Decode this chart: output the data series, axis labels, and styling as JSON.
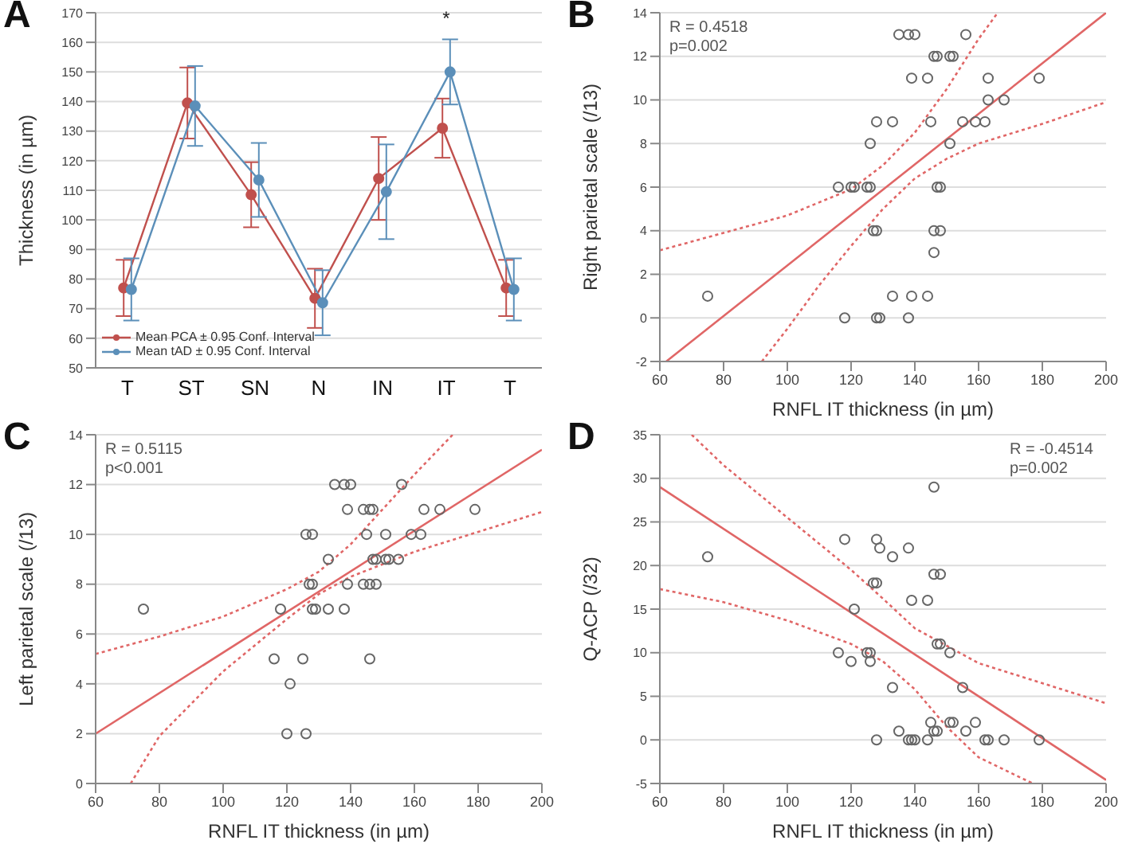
{
  "chart_data": [
    {
      "type": "line",
      "title": "A",
      "ylabel": "Thickness (in µm)",
      "categories": [
        "T",
        "ST",
        "SN",
        "N",
        "IN",
        "IT",
        "T"
      ],
      "ylim": [
        50,
        170
      ],
      "yticks": [
        50,
        60,
        70,
        80,
        90,
        100,
        110,
        120,
        130,
        140,
        150,
        160,
        170
      ],
      "grid": "y",
      "marker": "circle",
      "legend": "bottom left",
      "annotations": [
        {
          "text": "*",
          "x": "IT",
          "y": 150
        }
      ],
      "series": [
        {
          "name": "Mean PCA ± 0.95 Conf. Interval",
          "color": "#c0504d",
          "values": [
            77,
            139.5,
            108.5,
            73.5,
            114,
            131,
            77
          ],
          "errors": [
            9.5,
            12,
            11,
            10,
            14,
            10,
            9.5
          ]
        },
        {
          "name": "Mean tAD ± 0.95 Conf. Interval",
          "color": "#5b8fb9",
          "values": [
            76.5,
            138.5,
            113.5,
            72,
            109.5,
            150,
            76.5
          ],
          "errors": [
            10.5,
            13.5,
            12.5,
            11,
            16,
            11,
            10.5
          ]
        }
      ]
    },
    {
      "type": "scatter",
      "title": "B",
      "xlabel": "RNFL IT thickness (in µm)",
      "ylabel": "Right parietal scale (/13)",
      "xlim": [
        60,
        200
      ],
      "xticks": [
        60,
        80,
        100,
        120,
        140,
        160,
        180,
        200
      ],
      "ylim": [
        -2,
        14
      ],
      "yticks": [
        -2,
        0,
        2,
        4,
        6,
        8,
        10,
        12,
        14
      ],
      "grid": "y",
      "marker": "circle",
      "annotations": [
        "R = 0.4518",
        "p=0.002"
      ],
      "series": [
        {
          "color": "#666666",
          "x": [
            135,
            138,
            140,
            156,
            146,
            147,
            151,
            152,
            139,
            144,
            163,
            179,
            163,
            168,
            128,
            133,
            145,
            155,
            159,
            162,
            126,
            151,
            116,
            120,
            121,
            125,
            126,
            147,
            148,
            127,
            128,
            146,
            148,
            146,
            75,
            133,
            139,
            144,
            118,
            128,
            129,
            138
          ],
          "values": [
            13,
            13,
            13,
            13,
            12,
            12,
            12,
            12,
            11,
            11,
            11,
            11,
            10,
            10,
            9,
            9,
            9,
            9,
            9,
            9,
            8,
            8,
            6,
            6,
            6,
            6,
            6,
            6,
            6,
            4,
            4,
            4,
            4,
            3,
            1,
            1,
            1,
            1,
            0,
            0,
            0,
            0
          ]
        },
        {
          "type": "line",
          "marker": "none",
          "line_style": "solid",
          "color": "#e06666",
          "x": [
            62,
            200
          ],
          "values": [
            -2,
            14
          ]
        },
        {
          "type": "line",
          "marker": "none",
          "line_style": "dotted",
          "color": "#e06666",
          "x": [
            60,
            80,
            100,
            120,
            130,
            140,
            150,
            160,
            166
          ],
          "values": [
            3.1,
            3.9,
            4.7,
            5.9,
            7,
            8.5,
            10.5,
            12.8,
            14
          ]
        },
        {
          "type": "line",
          "marker": "none",
          "line_style": "dotted",
          "color": "#e06666",
          "x": [
            92,
            100,
            110,
            120,
            130,
            140,
            150,
            160,
            180,
            200
          ],
          "values": [
            -2,
            -0.5,
            1.5,
            3.3,
            5,
            6.4,
            7.3,
            8,
            8.9,
            9.9
          ]
        }
      ]
    },
    {
      "type": "scatter",
      "title": "C",
      "xlabel": "RNFL IT thickness (in µm)",
      "ylabel": "Left parietal scale (/13)",
      "xlim": [
        60,
        200
      ],
      "xticks": [
        60,
        80,
        100,
        120,
        140,
        160,
        180,
        200
      ],
      "ylim": [
        0,
        14
      ],
      "yticks": [
        0,
        2,
        4,
        6,
        8,
        10,
        12,
        14
      ],
      "grid": "y",
      "marker": "circle",
      "annotations": [
        "R = 0.5115",
        "p<0.001"
      ],
      "series": [
        {
          "color": "#666666",
          "x": [
            135,
            138,
            140,
            156,
            139,
            144,
            146,
            147,
            163,
            168,
            179,
            126,
            128,
            145,
            151,
            159,
            162,
            133,
            147,
            148,
            151,
            152,
            155,
            127,
            128,
            139,
            144,
            146,
            148,
            75,
            118,
            128,
            129,
            133,
            138,
            116,
            125,
            146,
            121,
            120,
            126
          ],
          "values": [
            12,
            12,
            12,
            12,
            11,
            11,
            11,
            11,
            11,
            11,
            11,
            10,
            10,
            10,
            10,
            10,
            10,
            9,
            9,
            9,
            9,
            9,
            9,
            8,
            8,
            8,
            8,
            8,
            8,
            7,
            7,
            7,
            7,
            7,
            7,
            5,
            5,
            5,
            4,
            2,
            2
          ]
        },
        {
          "type": "line",
          "marker": "none",
          "line_style": "solid",
          "color": "#e06666",
          "x": [
            60,
            200
          ],
          "values": [
            2,
            13.4
          ]
        },
        {
          "type": "line",
          "marker": "none",
          "line_style": "dotted",
          "color": "#e06666",
          "x": [
            60,
            80,
            100,
            120,
            130,
            140,
            150,
            160,
            172
          ],
          "values": [
            5.2,
            5.9,
            6.7,
            7.8,
            8.5,
            9.6,
            11,
            12.4,
            14
          ]
        },
        {
          "type": "line",
          "marker": "none",
          "line_style": "dotted",
          "color": "#e06666",
          "x": [
            71,
            80,
            100,
            120,
            130,
            140,
            150,
            160,
            180,
            200
          ],
          "values": [
            0,
            1.9,
            4.5,
            6.6,
            7.6,
            8.3,
            8.8,
            9.3,
            10.1,
            10.9
          ]
        }
      ]
    },
    {
      "type": "scatter",
      "title": "D",
      "xlabel": "RNFL IT thickness (in µm)",
      "ylabel": "Q-ACP (/32)",
      "xlim": [
        60,
        200
      ],
      "xticks": [
        60,
        80,
        100,
        120,
        140,
        160,
        180,
        200
      ],
      "ylim": [
        -5,
        35
      ],
      "yticks": [
        -5,
        0,
        5,
        10,
        15,
        20,
        25,
        30,
        35
      ],
      "grid": "y",
      "marker": "circle",
      "annotations": [
        "R = -0.4514",
        "p=0.002"
      ],
      "series": [
        {
          "color": "#666666",
          "x": [
            146,
            118,
            128,
            129,
            138,
            75,
            133,
            146,
            148,
            127,
            128,
            139,
            144,
            121,
            147,
            148,
            116,
            125,
            126,
            151,
            120,
            126,
            133,
            155,
            145,
            151,
            152,
            159,
            135,
            146,
            147,
            156,
            128,
            138,
            139,
            140,
            144,
            162,
            163,
            168,
            179
          ],
          "values": [
            29,
            23,
            23,
            22,
            22,
            21,
            21,
            19,
            19,
            18,
            18,
            16,
            16,
            15,
            11,
            11,
            10,
            10,
            10,
            10,
            9,
            9,
            6,
            6,
            2,
            2,
            2,
            2,
            1,
            1,
            1,
            1,
            0,
            0,
            0,
            0,
            0,
            0,
            0,
            0,
            0
          ]
        },
        {
          "type": "line",
          "marker": "none",
          "line_style": "solid",
          "color": "#e06666",
          "x": [
            60,
            200
          ],
          "values": [
            29,
            -4.6
          ]
        },
        {
          "type": "line",
          "marker": "none",
          "line_style": "dotted",
          "color": "#e06666",
          "x": [
            70,
            80,
            100,
            120,
            130,
            140,
            150,
            160,
            180,
            200
          ],
          "values": [
            35,
            31.5,
            25.5,
            19.5,
            16.2,
            12.8,
            10.8,
            8.8,
            6.5,
            4.2
          ]
        },
        {
          "type": "line",
          "marker": "none",
          "line_style": "dotted",
          "color": "#e06666",
          "x": [
            60,
            80,
            100,
            120,
            130,
            140,
            150,
            160,
            177
          ],
          "values": [
            17.3,
            15.8,
            13.7,
            11,
            9,
            5.8,
            1.5,
            -2,
            -5
          ]
        }
      ]
    }
  ]
}
